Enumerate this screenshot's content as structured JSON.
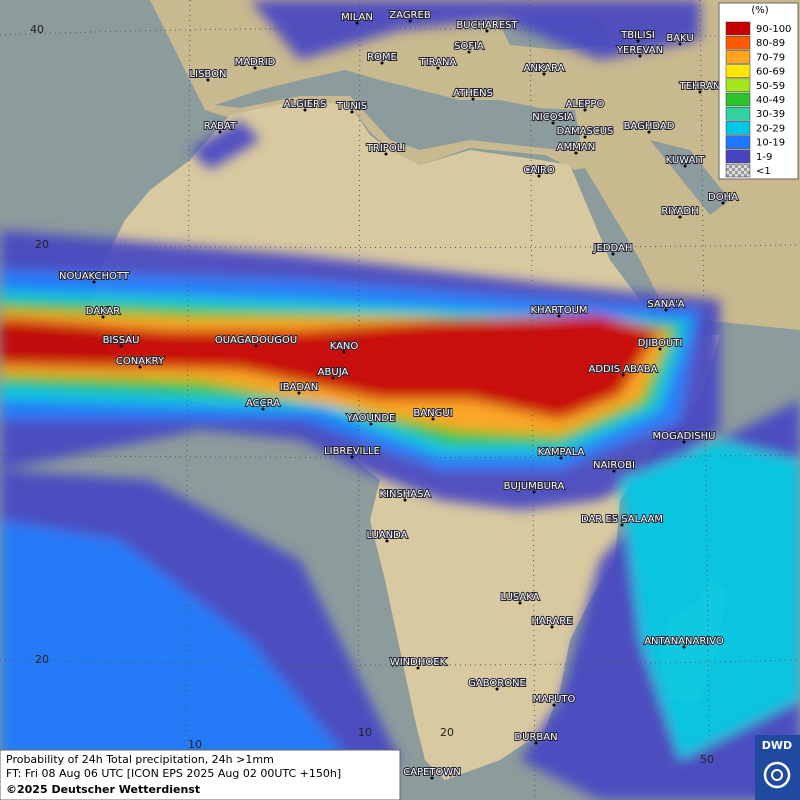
{
  "legend": {
    "title": "(%)",
    "items": [
      {
        "label": "90-100",
        "color": "#c80000"
      },
      {
        "label": "80-89",
        "color": "#ff5a00"
      },
      {
        "label": "70-79",
        "color": "#ffa41e"
      },
      {
        "label": "60-69",
        "color": "#ffe600"
      },
      {
        "label": "50-59",
        "color": "#a6e61e"
      },
      {
        "label": "40-49",
        "color": "#2dc32d"
      },
      {
        "label": "30-39",
        "color": "#32d2a0"
      },
      {
        "label": "20-29",
        "color": "#00c8e6"
      },
      {
        "label": "10-19",
        "color": "#1e78ff"
      },
      {
        "label": "1-9",
        "color": "#4646c3"
      },
      {
        "label": "<1",
        "color": "#b4b4b4"
      }
    ]
  },
  "cities": [
    "MILAN",
    "ZAGREB",
    "BUCHAREST",
    "TBILISI",
    "BAKU",
    "MADRID",
    "ROME",
    "SOFIA",
    "YEREVAN",
    "LISBON",
    "TIRANA",
    "ANKARA",
    "TEHRAN",
    "ATHENS",
    "ALGIERS",
    "TUNIS",
    "ALEPPO",
    "NICOSIA",
    "RABAT",
    "DAMASCUS",
    "BAGHDAD",
    "TRIPOLI",
    "AMMAN",
    "KUWAIT",
    "CAIRO",
    "DOHA",
    "RIYADH",
    "JEDDAH",
    "NOUAKCHOTT",
    "SANA'A",
    "KHARTOUM",
    "DAKAR",
    "DJIBOUTI",
    "BISSAU",
    "OUAGADOUGOU",
    "KANO",
    "ADDIS ABABA",
    "CONAKRY",
    "ABUJA",
    "IBADAN",
    "ACCRA",
    "BANGUI",
    "YAOUNDE",
    "MOGADISHU",
    "LIBREVILLE",
    "KAMPALA",
    "NAIROBI",
    "KINSHASA",
    "BUJUMBURA",
    "DAR ES SALAAM",
    "LUANDA",
    "LUSAKA",
    "HARARE",
    "ANTANANARIVO",
    "WINDHOEK",
    "GABORONE",
    "MAPUTO",
    "DURBAN",
    "CAPETOWN"
  ],
  "grid_labels": [
    40,
    20,
    20,
    10,
    10,
    20,
    50
  ],
  "footer": {
    "line1": "Probability of 24h Total precipitation, 24h >1mm",
    "line2": "FT: Fri 08 Aug 06 UTC [ICON EPS 2025 Aug 02 00UTC +150h]",
    "copyright": "©2025 Deutscher Wetterdienst"
  },
  "logo": "DWD"
}
